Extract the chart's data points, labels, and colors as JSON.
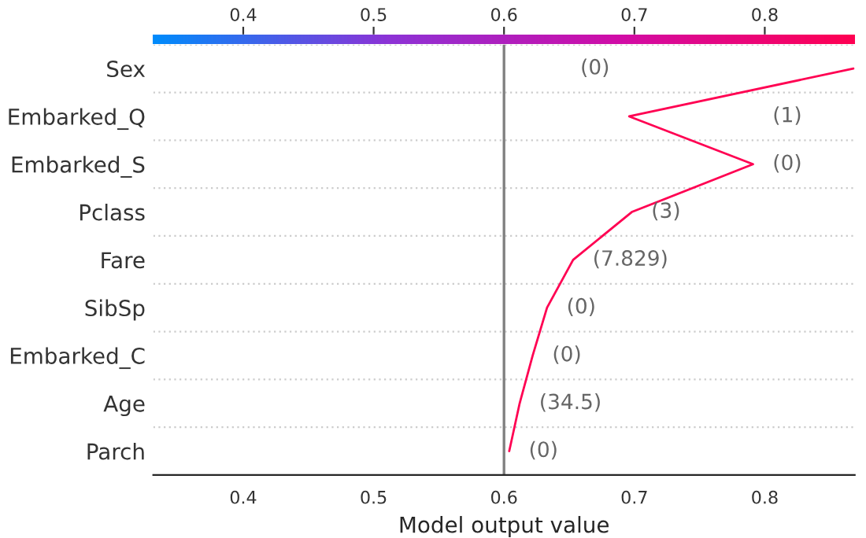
{
  "chart_data": {
    "type": "line",
    "orientation": "horizontal",
    "xlabel": "Model output value",
    "categories": [
      "Sex",
      "Embarked_Q",
      "Embarked_S",
      "Pclass",
      "Fare",
      "SibSp",
      "Embarked_C",
      "Age",
      "Parch"
    ],
    "series": [
      {
        "color": "#ff0052",
        "values": [
          0.868,
          0.696,
          0.791,
          0.698,
          0.653,
          0.633,
          0.622,
          0.612,
          0.604
        ]
      }
    ],
    "annotations": [
      "(0)",
      "(1)",
      "(0)",
      "(3)",
      "(7.829)",
      "(0)",
      "(0)",
      "(34.5)",
      "(0)"
    ],
    "xlim": [
      0.331,
      0.869
    ],
    "xticks": [
      0.4,
      0.5,
      0.6,
      0.7,
      0.8
    ],
    "clim": [
      0.331,
      0.869
    ],
    "cticks": [
      0.4,
      0.5,
      0.6,
      0.7,
      0.8
    ],
    "ref_lines": [
      {
        "axis": "x",
        "value": 0.6,
        "color": "#808080"
      }
    ],
    "grid": "y",
    "legend": false,
    "marker": "none",
    "line_style": "solid"
  }
}
